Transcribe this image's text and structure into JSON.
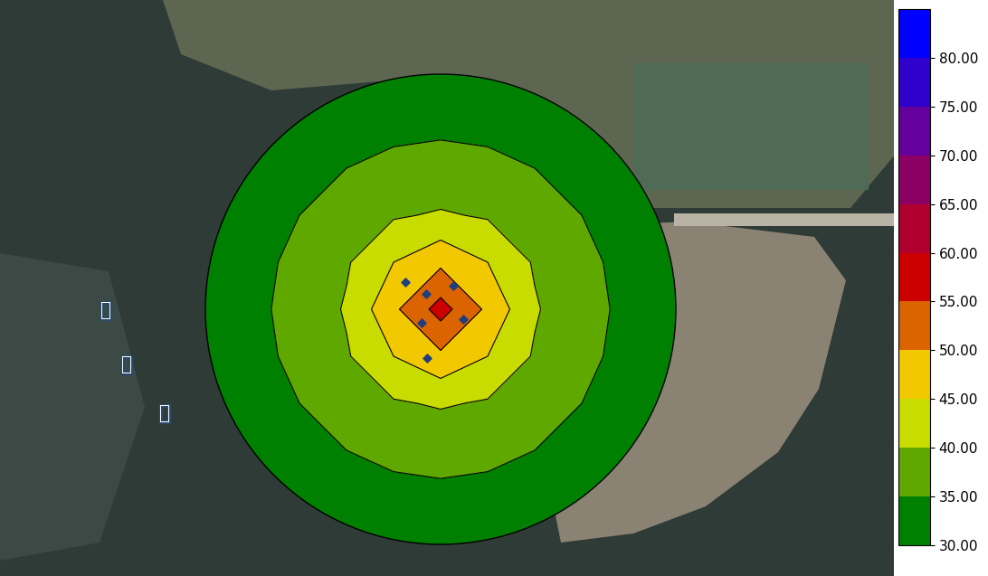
{
  "chart_data": {
    "type": "contour",
    "x": [
      -5,
      -4,
      -3,
      -2,
      -1,
      0,
      1,
      2,
      3,
      4,
      5
    ],
    "y": [
      -5,
      -4,
      -3,
      -2,
      -1,
      0,
      1,
      2,
      3,
      4,
      5
    ],
    "values": [
      [
        28,
        29,
        30,
        30.8,
        31.3,
        31.5,
        31.3,
        30.8,
        30,
        29,
        28
      ],
      [
        29,
        30.3,
        31.5,
        33,
        33.8,
        34,
        33.8,
        33,
        31.5,
        30.3,
        29
      ],
      [
        30,
        31.5,
        33.5,
        35,
        36,
        36.5,
        36,
        35,
        33.5,
        31.5,
        30
      ],
      [
        30.8,
        33,
        35,
        37,
        39.5,
        40.5,
        39.5,
        37,
        35,
        33,
        30.8
      ],
      [
        31.3,
        33.8,
        36,
        39.5,
        45,
        49,
        45,
        39.5,
        36,
        33.8,
        31.3
      ],
      [
        31.5,
        34,
        36.5,
        40.5,
        49,
        57,
        49,
        40.5,
        36.5,
        34,
        31.5
      ],
      [
        31.3,
        33.8,
        36,
        39.5,
        45,
        49,
        45,
        39.5,
        36,
        33.8,
        31.3
      ],
      [
        30.8,
        33,
        35,
        37,
        39.5,
        40.5,
        39.5,
        37,
        35,
        33,
        30.8
      ],
      [
        30,
        31.5,
        33.5,
        35,
        36,
        36.5,
        36,
        35,
        33.5,
        31.5,
        30
      ],
      [
        29,
        30.3,
        31.5,
        33,
        33.8,
        34,
        33.8,
        33,
        31.5,
        30.3,
        29
      ],
      [
        28,
        29,
        30,
        30.8,
        31.3,
        31.5,
        31.3,
        30.8,
        30,
        29,
        28
      ]
    ],
    "levels": [
      30,
      35,
      40,
      45,
      50,
      55,
      60,
      65,
      70,
      75,
      80,
      85
    ],
    "colors": [
      "#008000",
      "#5fa800",
      "#c8dc00",
      "#f2c800",
      "#dc6400",
      "#cc0000",
      "#b0002e",
      "#8c0064",
      "#64009c",
      "#3000cc",
      "#0000ff"
    ],
    "colorbar": {
      "range": [
        30,
        85
      ],
      "ticks": [
        {
          "value": 30,
          "label": "30.00"
        },
        {
          "value": 35,
          "label": "35.00"
        },
        {
          "value": 40,
          "label": "40.00"
        },
        {
          "value": 45,
          "label": "45.00"
        },
        {
          "value": 50,
          "label": "50.00"
        },
        {
          "value": 55,
          "label": "55.00"
        },
        {
          "value": 60,
          "label": "60.00"
        },
        {
          "value": 65,
          "label": "65.00"
        },
        {
          "value": 70,
          "label": "70.00"
        },
        {
          "value": 75,
          "label": "75.00"
        },
        {
          "value": 80,
          "label": "80.00"
        }
      ]
    },
    "points": {
      "x": [
        -0.75,
        -0.31,
        0.27,
        -0.4,
        0.48,
        -0.29
      ],
      "y": [
        0.58,
        0.33,
        0.5,
        -0.29,
        -0.21,
        -1.04
      ]
    },
    "annotations": [
      "闻溪河"
    ]
  }
}
